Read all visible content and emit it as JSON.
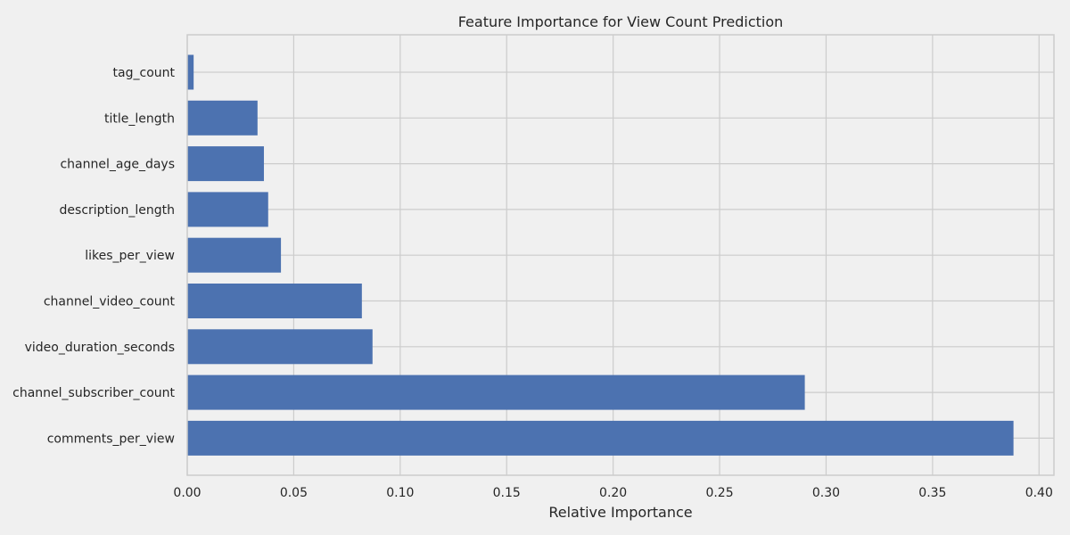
{
  "chart_data": {
    "type": "bar",
    "orientation": "horizontal",
    "title": "Feature Importance for View Count Prediction",
    "xlabel": "Relative Importance",
    "ylabel": "",
    "xlim": [
      0,
      0.407
    ],
    "xticks": [
      0.0,
      0.05,
      0.1,
      0.15,
      0.2,
      0.25,
      0.3,
      0.35,
      0.4
    ],
    "xtick_labels": [
      "0.00",
      "0.05",
      "0.10",
      "0.15",
      "0.20",
      "0.25",
      "0.30",
      "0.35",
      "0.40"
    ],
    "categories": [
      "tag_count",
      "title_length",
      "channel_age_days",
      "description_length",
      "likes_per_view",
      "channel_video_count",
      "video_duration_seconds",
      "channel_subscriber_count",
      "comments_per_view"
    ],
    "values": [
      0.003,
      0.033,
      0.036,
      0.038,
      0.044,
      0.082,
      0.087,
      0.29,
      0.388
    ],
    "grid": true,
    "colors": {
      "bar": "#4c72b0",
      "background": "#f0f0f0",
      "grid": "#cccccc",
      "text": "#262626"
    }
  }
}
